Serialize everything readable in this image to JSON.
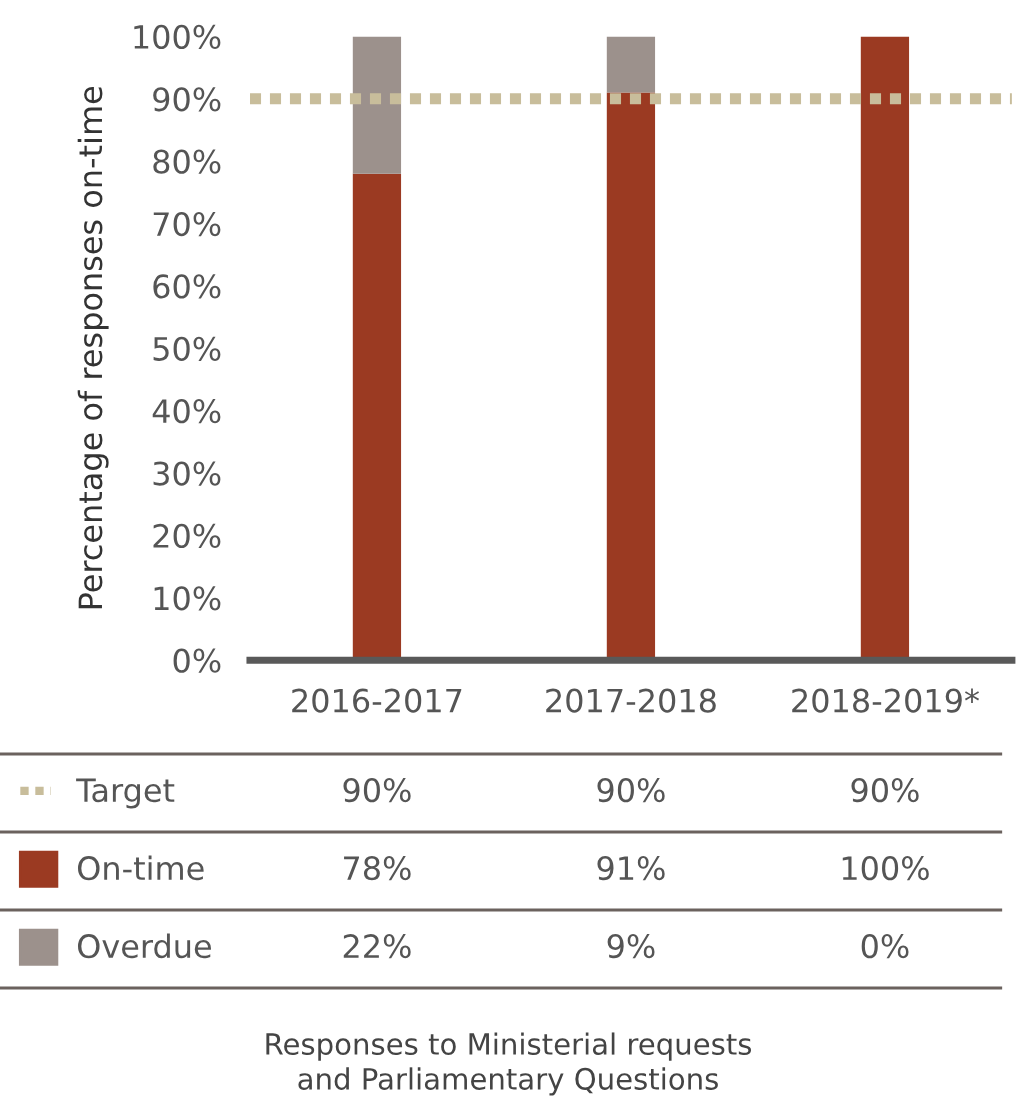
{
  "chart_data": {
    "type": "bar",
    "stacked": true,
    "ylabel": "Percentage of responses on-time",
    "categories": [
      "2016-2017",
      "2017-2018",
      "2018-2019*"
    ],
    "series": [
      {
        "name": "On-time",
        "color": "#9b3a22",
        "values": [
          78,
          91,
          100
        ],
        "value_labels": [
          "78%",
          "91%",
          "100%"
        ]
      },
      {
        "name": "Overdue",
        "color": "#9c918c",
        "values": [
          22,
          9,
          0
        ],
        "value_labels": [
          "22%",
          "9%",
          "0%"
        ]
      }
    ],
    "ref_lines": [
      {
        "axis": "y",
        "value": 90,
        "label": "Target",
        "color": "#c8bd9b",
        "line_style": "dotted"
      }
    ],
    "annotations": [
      "90%",
      "90%",
      "90%",
      "Responses to Ministerial requests\nand Parliamentary Questions"
    ],
    "ylim": [
      0,
      100
    ],
    "yticks": [
      {
        "value": 0,
        "label": "0%"
      },
      {
        "value": 10,
        "label": "10%"
      },
      {
        "value": 20,
        "label": "20%"
      },
      {
        "value": 30,
        "label": "30%"
      },
      {
        "value": 40,
        "label": "40%"
      },
      {
        "value": 50,
        "label": "50%"
      },
      {
        "value": 60,
        "label": "60%"
      },
      {
        "value": 70,
        "label": "70%"
      },
      {
        "value": 80,
        "label": "80%"
      },
      {
        "value": 90,
        "label": "90%"
      },
      {
        "value": 100,
        "label": "100%"
      }
    ],
    "grid": false,
    "legend": "bottom"
  }
}
